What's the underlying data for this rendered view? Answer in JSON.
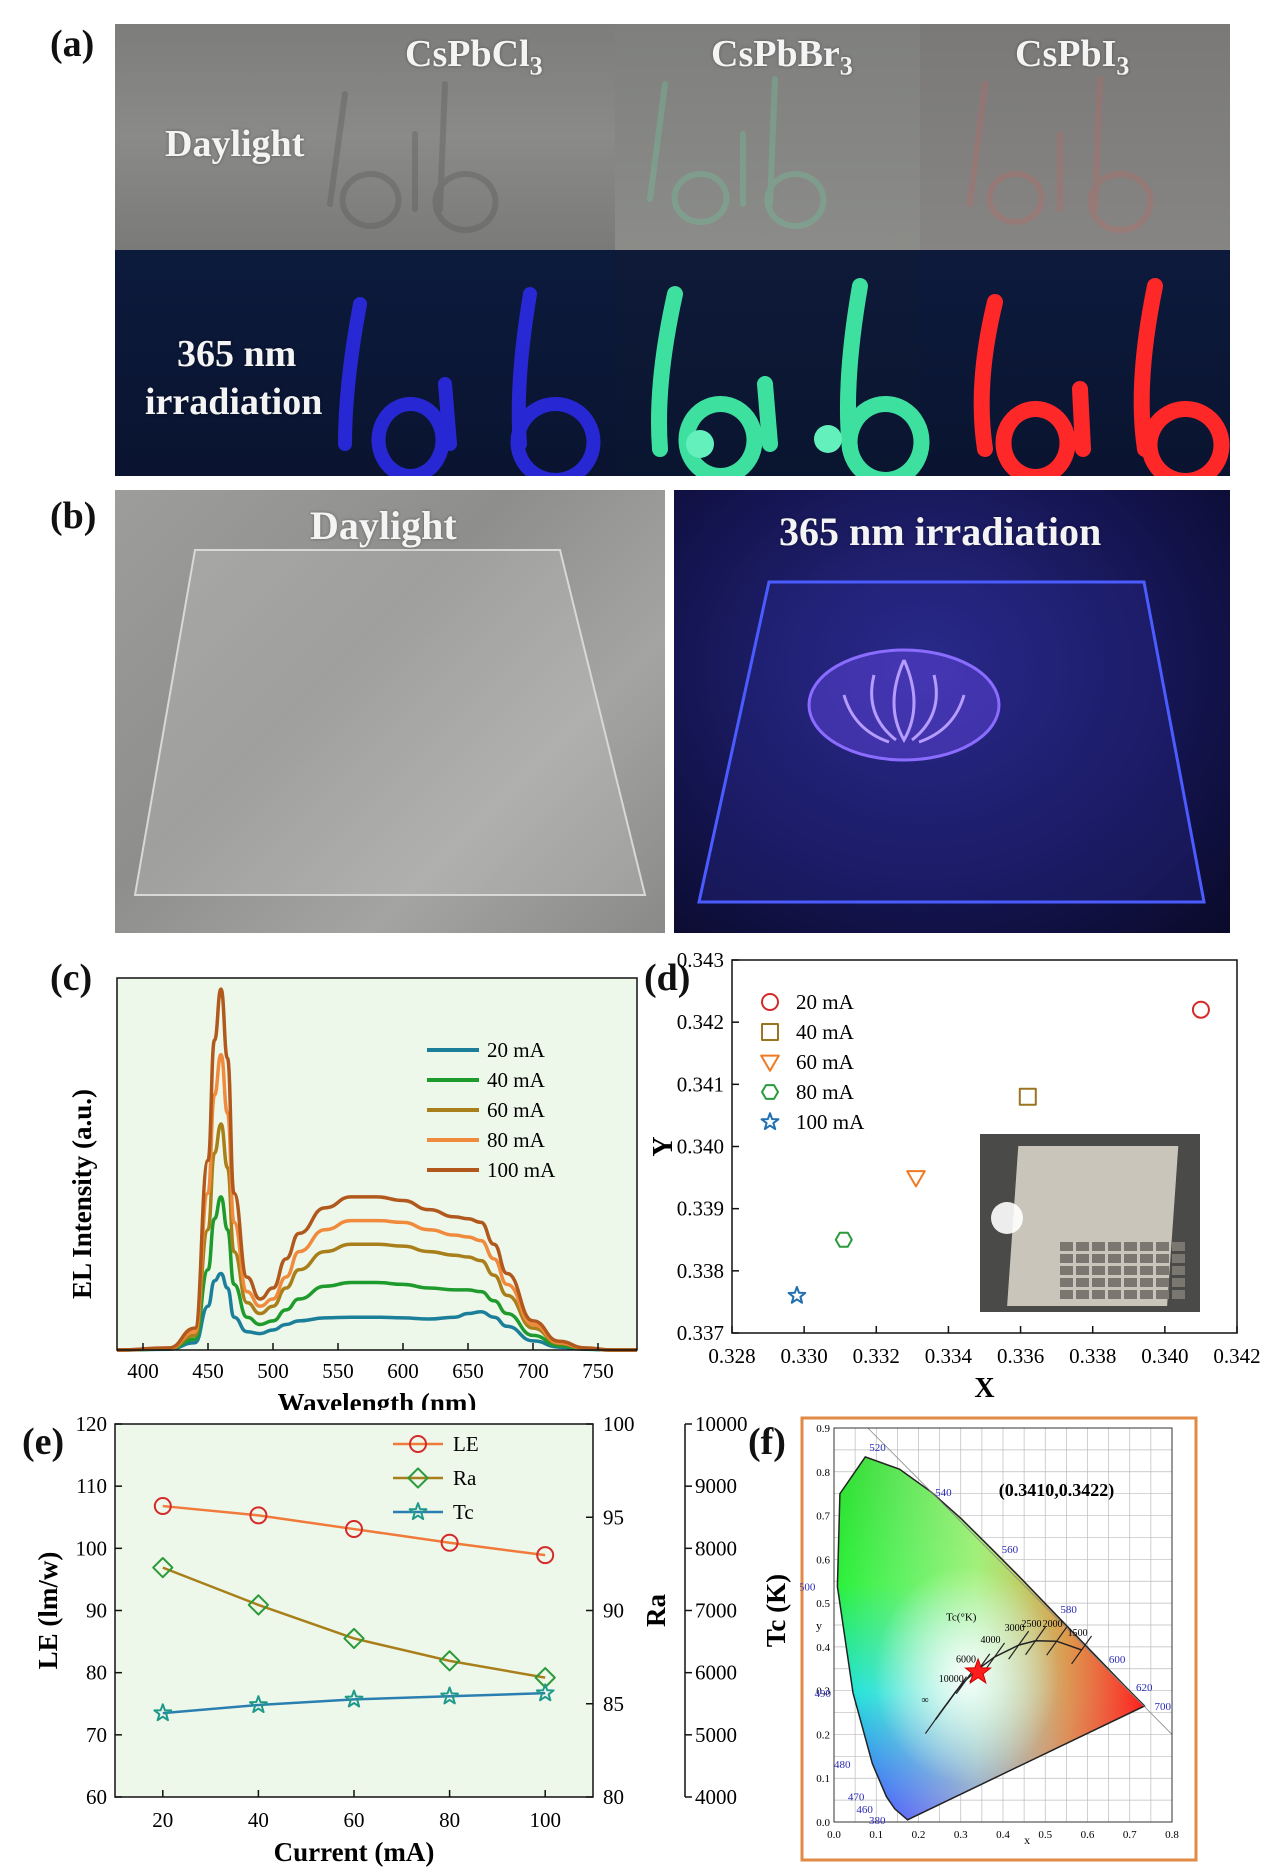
{
  "panel_labels": {
    "a": "(a)",
    "b": "(b)",
    "c": "(c)",
    "d": "(d)",
    "e": "(e)",
    "f": "(f)"
  },
  "panel_a": {
    "materials": [
      "CsPbCl3",
      "CsPbBr3",
      "CsPbI3"
    ],
    "row_daylight": "Daylight",
    "row_uv_line1": "365 nm",
    "row_uv_line2": "irradiation",
    "word": "lab",
    "uv_colors": [
      "#2e2cff",
      "#39e6a2",
      "#ff2a2a"
    ]
  },
  "panel_b": {
    "left_label": "Daylight",
    "right_label": "365 nm irradiation"
  },
  "chart_data": [
    {
      "id": "c",
      "type": "line",
      "xlabel": "Wavelength (nm)",
      "ylabel": "EL Intensity (a.u.)",
      "xlim": [
        380,
        780
      ],
      "xticks": [
        400,
        450,
        500,
        550,
        600,
        650,
        700,
        750
      ],
      "ylim": [
        0,
        1
      ],
      "x": [
        380,
        420,
        440,
        450,
        455,
        460,
        465,
        470,
        480,
        490,
        500,
        510,
        520,
        540,
        560,
        580,
        600,
        620,
        640,
        650,
        660,
        670,
        680,
        700,
        720,
        740,
        760,
        780
      ],
      "series": [
        {
          "name": "20 mA",
          "color": "#1c7f9a",
          "values": [
            0.0,
            0.002,
            0.02,
            0.12,
            0.19,
            0.21,
            0.17,
            0.09,
            0.05,
            0.045,
            0.055,
            0.07,
            0.08,
            0.088,
            0.09,
            0.09,
            0.088,
            0.085,
            0.09,
            0.1,
            0.105,
            0.09,
            0.065,
            0.025,
            0.008,
            0.002,
            0.0,
            0.0
          ]
        },
        {
          "name": "40 mA",
          "color": "#1f9a2c",
          "values": [
            0.0,
            0.003,
            0.03,
            0.22,
            0.36,
            0.42,
            0.33,
            0.18,
            0.09,
            0.07,
            0.08,
            0.11,
            0.14,
            0.175,
            0.185,
            0.185,
            0.18,
            0.17,
            0.165,
            0.165,
            0.16,
            0.135,
            0.1,
            0.04,
            0.012,
            0.003,
            0.0,
            0.0
          ]
        },
        {
          "name": "60 mA",
          "color": "#a87f1a",
          "values": [
            0.0,
            0.004,
            0.04,
            0.33,
            0.54,
            0.62,
            0.5,
            0.27,
            0.13,
            0.1,
            0.12,
            0.17,
            0.22,
            0.27,
            0.29,
            0.29,
            0.285,
            0.27,
            0.26,
            0.255,
            0.245,
            0.205,
            0.15,
            0.06,
            0.018,
            0.004,
            0.0,
            0.0
          ]
        },
        {
          "name": "80 mA",
          "color": "#f08a3c",
          "values": [
            0.0,
            0.005,
            0.05,
            0.43,
            0.7,
            0.81,
            0.65,
            0.35,
            0.16,
            0.12,
            0.14,
            0.2,
            0.27,
            0.33,
            0.355,
            0.355,
            0.35,
            0.33,
            0.315,
            0.31,
            0.3,
            0.25,
            0.18,
            0.07,
            0.02,
            0.005,
            0.0,
            0.0
          ]
        },
        {
          "name": "100 mA",
          "color": "#b1581d",
          "values": [
            0.0,
            0.006,
            0.06,
            0.52,
            0.85,
            0.99,
            0.8,
            0.43,
            0.2,
            0.14,
            0.17,
            0.25,
            0.32,
            0.39,
            0.42,
            0.42,
            0.41,
            0.385,
            0.365,
            0.36,
            0.35,
            0.29,
            0.21,
            0.08,
            0.024,
            0.006,
            0.0,
            0.0
          ]
        }
      ]
    },
    {
      "id": "d",
      "type": "scatter",
      "xlabel": "X",
      "ylabel": "Y",
      "xlim": [
        0.328,
        0.342
      ],
      "ylim": [
        0.337,
        0.343
      ],
      "xticks": [
        "0.328",
        "0.330",
        "0.332",
        "0.334",
        "0.336",
        "0.338",
        "0.340",
        "0.342"
      ],
      "yticks": [
        "0.337",
        "0.338",
        "0.339",
        "0.340",
        "0.341",
        "0.342",
        "0.343"
      ],
      "series": [
        {
          "name": "20 mA",
          "marker": "circle",
          "color": "#d42a2a",
          "x": 0.341,
          "y": 0.3422
        },
        {
          "name": "40 mA",
          "marker": "square",
          "color": "#9a7420",
          "x": 0.3362,
          "y": 0.3408
        },
        {
          "name": "60 mA",
          "marker": "triangle-down",
          "color": "#f07a22",
          "x": 0.3331,
          "y": 0.3395
        },
        {
          "name": "80 mA",
          "marker": "hexagon",
          "color": "#2a9a3a",
          "x": 0.3311,
          "y": 0.3385
        },
        {
          "name": "100 mA",
          "marker": "star",
          "color": "#1f6fb3",
          "x": 0.3298,
          "y": 0.3376
        }
      ]
    },
    {
      "id": "e",
      "type": "line",
      "xlabel": "Current (mA)",
      "ylabel_left": "LE (lm/w)",
      "ylabel_mid": "Ra",
      "ylabel_right": "Tc (K)",
      "categories": [
        20,
        40,
        60,
        80,
        100
      ],
      "xlim": [
        10,
        110
      ],
      "ylim_left": [
        60,
        120
      ],
      "ylim_mid": [
        80,
        100
      ],
      "ylim_right": [
        4000,
        10000
      ],
      "yticks_left": [
        "60",
        "70",
        "80",
        "90",
        "100",
        "110",
        "120"
      ],
      "yticks_mid": [
        "80",
        "85",
        "90",
        "95",
        "100"
      ],
      "yticks_right": [
        "4000",
        "5000",
        "6000",
        "7000",
        "8000",
        "9000",
        "10000"
      ],
      "series": [
        {
          "name": "LE",
          "axis": "left",
          "marker": "circle",
          "color": "#f07a3a",
          "mcolor": "#d42a2a",
          "values": [
            106.8,
            105.3,
            103.1,
            100.9,
            98.9
          ]
        },
        {
          "name": "Ra",
          "axis": "mid",
          "marker": "diamond",
          "color": "#a87f1a",
          "mcolor": "#2a9a3a",
          "values": [
            92.3,
            90.3,
            88.5,
            87.3,
            86.4
          ]
        },
        {
          "name": "Tc",
          "axis": "right",
          "marker": "star",
          "color": "#2a7fb0",
          "mcolor": "#1f9a8a",
          "values": [
            5350,
            5480,
            5570,
            5620,
            5670
          ]
        }
      ]
    }
  ],
  "panel_f": {
    "coord_label": "(0.3410,0.3422)",
    "xlabel": "x",
    "ylabel": "y",
    "xticks": [
      "0.0",
      "0.1",
      "0.2",
      "0.3",
      "0.4",
      "0.5",
      "0.6",
      "0.7",
      "0.8"
    ],
    "yticks": [
      "0.0",
      "0.1",
      "0.2",
      "0.3",
      "0.4",
      "0.5",
      "0.6",
      "0.7",
      "0.8",
      "0.9"
    ],
    "wavelengths": [
      {
        "label": "520",
        "x": 0.074,
        "y": 0.834
      },
      {
        "label": "540",
        "x": 0.23,
        "y": 0.754
      },
      {
        "label": "560",
        "x": 0.373,
        "y": 0.624
      },
      {
        "label": "580",
        "x": 0.512,
        "y": 0.487
      },
      {
        "label": "600",
        "x": 0.627,
        "y": 0.372
      },
      {
        "label": "620",
        "x": 0.691,
        "y": 0.308
      },
      {
        "label": "700",
        "x": 0.735,
        "y": 0.265
      },
      {
        "label": "500",
        "x": 0.008,
        "y": 0.538
      },
      {
        "label": "490",
        "x": 0.045,
        "y": 0.295
      },
      {
        "label": "480",
        "x": 0.091,
        "y": 0.133
      },
      {
        "label": "470",
        "x": 0.124,
        "y": 0.058
      },
      {
        "label": "460",
        "x": 0.144,
        "y": 0.03
      },
      {
        "label": "380",
        "x": 0.174,
        "y": 0.005
      }
    ],
    "tc_label": "Tc(°K)",
    "cct_labels": [
      {
        "label": "10000",
        "x": 0.281,
        "y": 0.288
      },
      {
        "label": "6000",
        "x": 0.322,
        "y": 0.332
      },
      {
        "label": "4000",
        "x": 0.38,
        "y": 0.377
      },
      {
        "label": "3000",
        "x": 0.437,
        "y": 0.404
      },
      {
        "label": "2500",
        "x": 0.477,
        "y": 0.414
      },
      {
        "label": "2000",
        "x": 0.527,
        "y": 0.413
      },
      {
        "label": "1500",
        "x": 0.586,
        "y": 0.393
      },
      {
        "label": "∞",
        "x": 0.24,
        "y": 0.24
      }
    ],
    "point": {
      "x": 0.341,
      "y": 0.3422
    },
    "border_color": "#e08a45"
  }
}
